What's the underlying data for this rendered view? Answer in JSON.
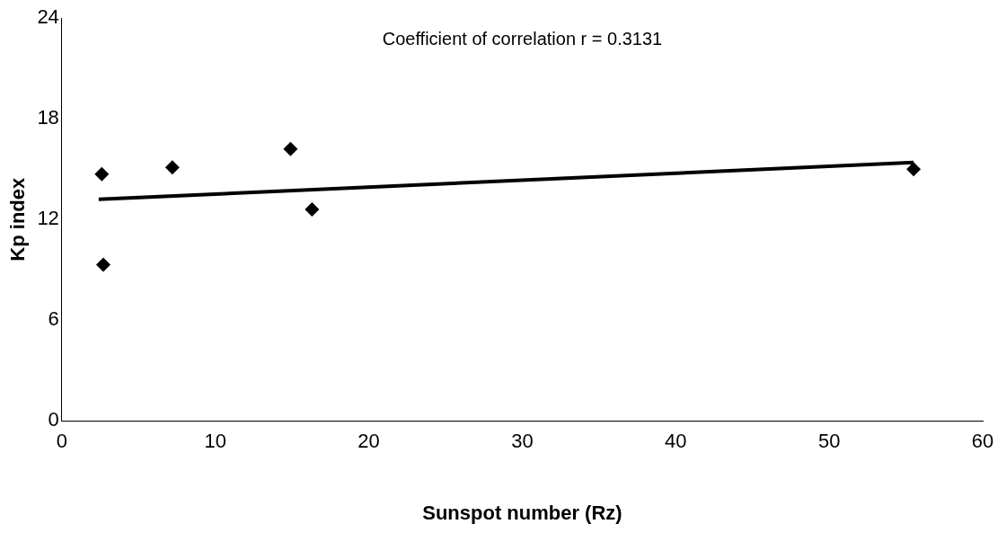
{
  "chart_data": {
    "type": "scatter",
    "xlabel": "Sunspot number (Rz)",
    "ylabel": "Kp index",
    "annotations": [
      "Coefficient of correlation r = 0.3131"
    ],
    "xlim": [
      0,
      60
    ],
    "xticks": [
      0,
      10,
      20,
      30,
      40,
      50,
      60
    ],
    "ylim": [
      0,
      24
    ],
    "yticks": [
      0,
      6,
      12,
      18,
      24
    ],
    "grid": false,
    "legend": false,
    "marker": "diamond",
    "series": [
      {
        "type": "scatter",
        "color": "#000000",
        "x": [
          2.6,
          2.7,
          7.2,
          14.9,
          16.3,
          55.5
        ],
        "values": [
          14.7,
          9.3,
          15.1,
          16.2,
          12.6,
          15.0
        ]
      },
      {
        "type": "line",
        "color": "#000000",
        "marker": "none",
        "line_style": "solid",
        "x": [
          2.4,
          55.5
        ],
        "values": [
          13.2,
          15.4
        ]
      }
    ]
  }
}
